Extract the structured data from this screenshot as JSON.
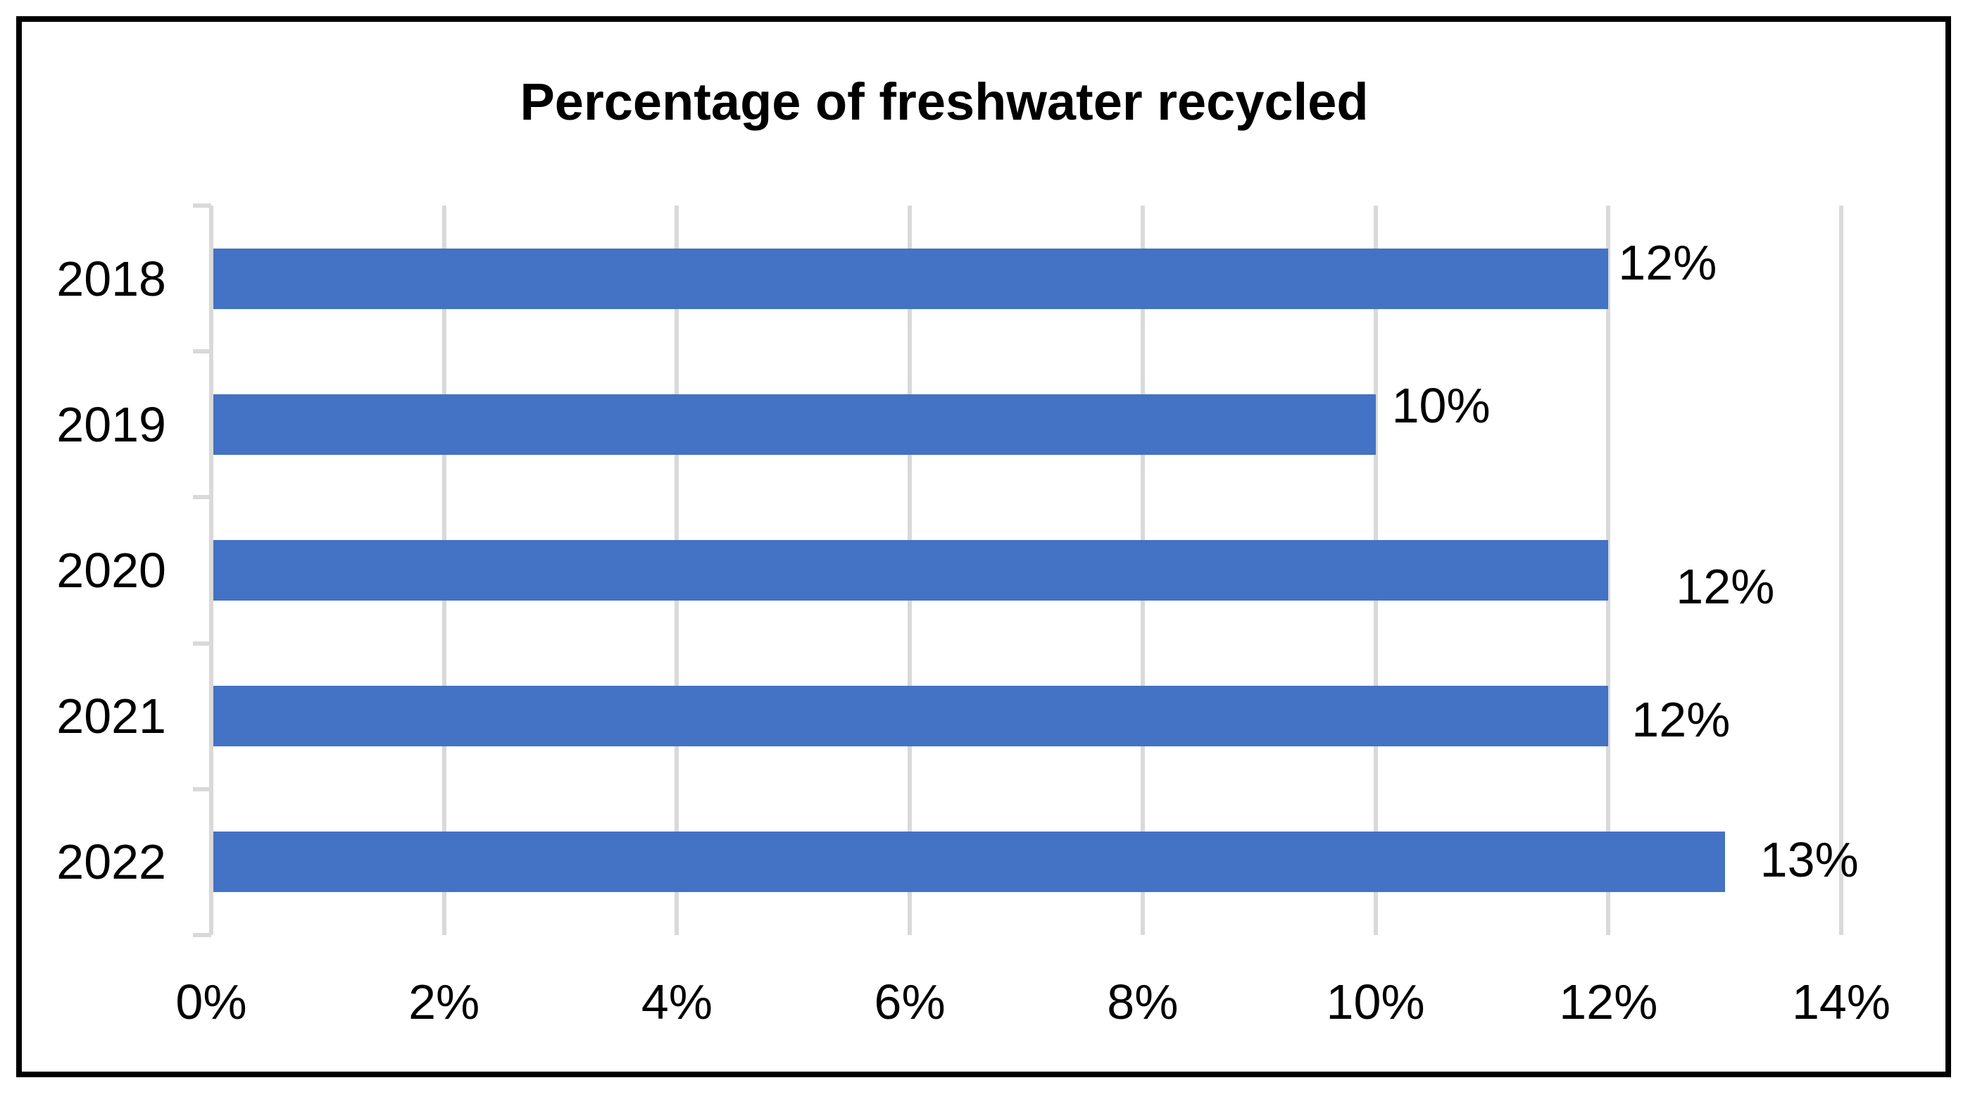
{
  "chart_data": {
    "type": "bar",
    "orientation": "horizontal",
    "title": "Percentage of freshwater recycled",
    "categories": [
      "2018",
      "2019",
      "2020",
      "2021",
      "2022"
    ],
    "values": [
      12,
      10,
      12,
      12,
      13
    ],
    "data_labels": [
      "12%",
      "10%",
      "12%",
      "12%",
      "13%"
    ],
    "unit": "%",
    "x_axis": {
      "min": 0,
      "max": 14,
      "tick_values": [
        0,
        2,
        4,
        6,
        8,
        10,
        12,
        14
      ],
      "tick_labels": [
        "0%",
        "2%",
        "4%",
        "6%",
        "8%",
        "10%",
        "12%",
        "14%"
      ]
    },
    "grid": true,
    "legend": false,
    "colors": {
      "bar": "#4472C4",
      "gridline": "#D9D9D9",
      "axis": "#D9D9D9",
      "text": "#000000",
      "title": "#000000",
      "border": "#000000",
      "background": "#FFFFFF"
    }
  }
}
